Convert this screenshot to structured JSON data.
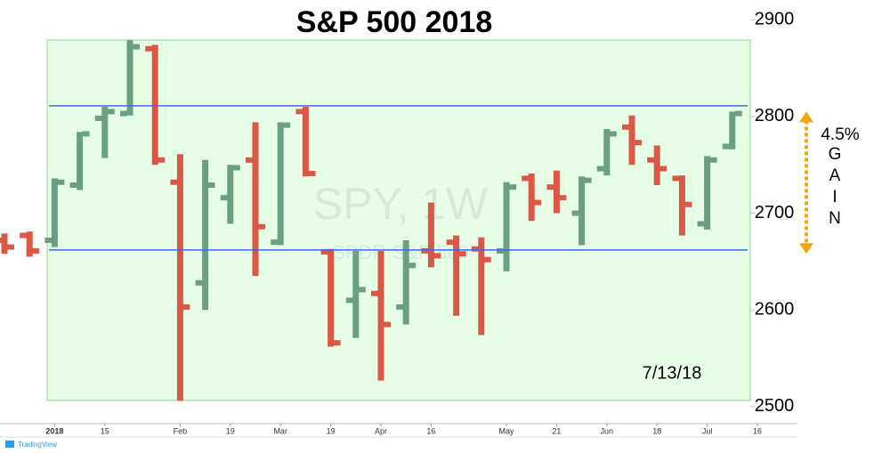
{
  "chart_data": {
    "type": "ohlc",
    "title": "S&P 500 2018",
    "watermark": "SPY, 1W",
    "watermark_sub": "SPDR S&P 500",
    "annotation": "7/13/18",
    "gain_label": "4.5%",
    "gain_letters": [
      "G",
      "A",
      "I",
      "N"
    ],
    "gain_range": [
      2658,
      2805
    ],
    "source": "TradingView",
    "categories": [
      null,
      null,
      "2018",
      null,
      "15",
      null,
      null,
      "Feb",
      null,
      "19",
      null,
      "Mar",
      null,
      "19",
      null,
      "Apr",
      null,
      "16",
      null,
      null,
      "May",
      null,
      "21",
      null,
      "Jun",
      null,
      "18",
      null,
      "Jul",
      null,
      "16"
    ],
    "open": [
      2672,
      2677,
      2672,
      2729,
      2798,
      2803,
      2870,
      2732,
      2628,
      2716,
      2755,
      2670,
      2805,
      2660,
      2610,
      2617,
      2603,
      2661,
      2670,
      2663,
      2661,
      2736,
      2727,
      2700,
      2746,
      2789,
      2755,
      2736,
      2689,
      2769,
      null
    ],
    "high": [
      2679,
      2681,
      2736,
      2784,
      2810,
      2879,
      2874,
      2761,
      2755,
      2750,
      2794,
      2794,
      2810,
      2663,
      2661,
      2661,
      2672,
      2711,
      2677,
      2675,
      2732,
      2741,
      2744,
      2738,
      2787,
      2801,
      2770,
      2739,
      2759,
      2805,
      null
    ],
    "low": [
      2658,
      2655,
      2665,
      2724,
      2757,
      2801,
      2750,
      2506,
      2600,
      2689,
      2635,
      2667,
      2738,
      2562,
      2571,
      2527,
      2585,
      2644,
      2594,
      2574,
      2640,
      2692,
      2700,
      2667,
      2739,
      2750,
      2729,
      2677,
      2683,
      2766,
      null
    ],
    "close": [
      2665,
      2661,
      2732,
      2782,
      2805,
      2872,
      2755,
      2603,
      2729,
      2747,
      2686,
      2791,
      2741,
      2566,
      2621,
      2585,
      2646,
      2656,
      2658,
      2652,
      2727,
      2711,
      2716,
      2734,
      2782,
      2773,
      2746,
      2709,
      2755,
      2803,
      null
    ],
    "up_color": "#6b9f83",
    "down_color": "#dc5846",
    "hlines": [
      2811,
      2662
    ],
    "hline_color": "#4169e1",
    "gain_color": "#f2a413",
    "ylim": [
      2488,
      2913
    ],
    "yticks": [
      2500,
      2600,
      2700,
      2800,
      2900
    ]
  }
}
